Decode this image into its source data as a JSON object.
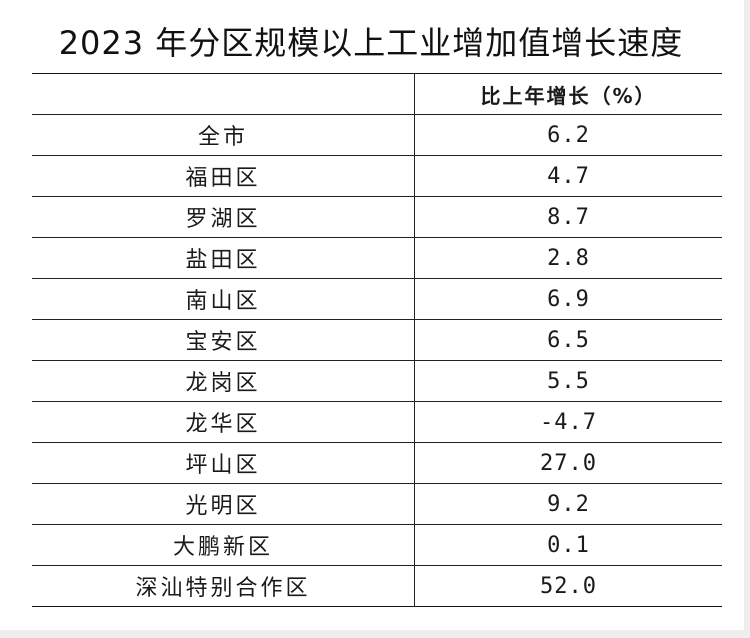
{
  "title": "2023 年分区规模以上工业增加值增长速度",
  "table": {
    "headers": [
      "",
      "比上年增长（%）"
    ],
    "rows": [
      {
        "district": "全市",
        "value": "6.2"
      },
      {
        "district": "福田区",
        "value": "4.7"
      },
      {
        "district": "罗湖区",
        "value": "8.7"
      },
      {
        "district": "盐田区",
        "value": "2.8"
      },
      {
        "district": "南山区",
        "value": "6.9"
      },
      {
        "district": "宝安区",
        "value": "6.5"
      },
      {
        "district": "龙岗区",
        "value": "5.5"
      },
      {
        "district": "龙华区",
        "value": "-4.7"
      },
      {
        "district": "坪山区",
        "value": "27.0"
      },
      {
        "district": "光明区",
        "value": "9.2"
      },
      {
        "district": "大鹏新区",
        "value": "0.1"
      },
      {
        "district": "深汕特别合作区",
        "value": "52.0"
      }
    ]
  }
}
